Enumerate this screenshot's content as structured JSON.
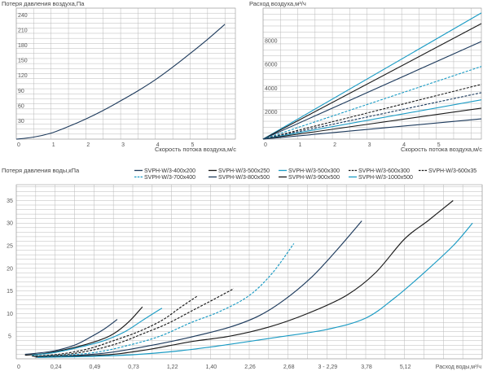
{
  "chart_data": [
    {
      "type": "line",
      "ylabel": "Потеря давления воздуха,Па",
      "xlabel": "Скорость потока воздуха,м/с",
      "xlim": [
        0,
        6.3
      ],
      "ylim": [
        0,
        260
      ],
      "xticks": [
        "0",
        "1",
        "2",
        "3",
        "4",
        "5"
      ],
      "yticks": [
        "30",
        "60",
        "90",
        "120",
        "150",
        "180",
        "210",
        "240"
      ],
      "grid": true,
      "series": [
        {
          "color": "#1d3a5c",
          "x": [
            0,
            0.5,
            1,
            1.5,
            2,
            2.5,
            3,
            3.5,
            4,
            4.5,
            5,
            5.5,
            6
          ],
          "y": [
            0,
            4,
            12,
            25,
            40,
            57,
            76,
            96,
            118,
            143,
            170,
            198,
            228
          ]
        }
      ]
    },
    {
      "type": "line",
      "ylabel": "Расход воздуха,м³/ч",
      "xlabel": "Скорость потока воздуха,м/с",
      "xlim": [
        0,
        6.3
      ],
      "ylim": [
        0,
        11000
      ],
      "xticks": [
        "0",
        "1",
        "2",
        "3",
        "4",
        "5"
      ],
      "yticks": [
        "2000",
        "4000",
        "6000",
        "8000"
      ],
      "grid": true,
      "series": [
        {
          "color": "#1a9bc4",
          "dash": false,
          "x": [
            0,
            6.3
          ],
          "y": [
            0,
            10600
          ]
        },
        {
          "color": "#1a1a1a",
          "dash": false,
          "x": [
            0,
            6.3
          ],
          "y": [
            0,
            9700
          ]
        },
        {
          "color": "#1d3a5c",
          "dash": false,
          "x": [
            0,
            6.3
          ],
          "y": [
            0,
            8200
          ]
        },
        {
          "color": "#1a9bc4",
          "dash": true,
          "x": [
            0,
            6.3
          ],
          "y": [
            0,
            6100
          ]
        },
        {
          "color": "#1a1a1a",
          "dash": true,
          "x": [
            0,
            6.3
          ],
          "y": [
            0,
            4600
          ]
        },
        {
          "color": "#1d3a5c",
          "dash": true,
          "x": [
            0,
            6.3
          ],
          "y": [
            0,
            3900
          ]
        },
        {
          "color": "#1a9bc4",
          "dash": false,
          "x": [
            0,
            6.3
          ],
          "y": [
            0,
            3300
          ]
        },
        {
          "color": "#1a1a1a",
          "dash": false,
          "x": [
            0,
            6.3
          ],
          "y": [
            0,
            2600
          ]
        },
        {
          "color": "#1d3a5c",
          "dash": false,
          "x": [
            0,
            6.3
          ],
          "y": [
            0,
            1700
          ]
        }
      ]
    },
    {
      "type": "line",
      "ylabel": "Потеря давления воды,кПа",
      "xlabel": "Расход воды,м³/ч",
      "xticks": [
        "0",
        "0,24",
        "0,49",
        "0,73",
        "1,22",
        "1,40",
        "2,26",
        "2,68",
        "3 - 2,29",
        "3,78",
        "5,12"
      ],
      "yticks": [
        "5",
        "10",
        "15",
        "20",
        "25",
        "30",
        "35"
      ],
      "ylim": [
        0,
        38.5
      ],
      "grid": true,
      "legend": "top",
      "series": [
        {
          "name": "SVPH-W/3-400x200",
          "color": "#1d3a5c",
          "dash": false,
          "points": [
            [
              0.45,
              1
            ],
            [
              1.0,
              1.2
            ],
            [
              2.0,
              1.8
            ],
            [
              3.0,
              3.0
            ],
            [
              3.7,
              4.5
            ],
            [
              4.5,
              6.5
            ],
            [
              5.2,
              8.7
            ]
          ]
        },
        {
          "name": "SVPH-W/3-500x250",
          "color": "#1a1a1a",
          "dash": false,
          "points": [
            [
              0.45,
              0.8
            ],
            [
              1.5,
              1.2
            ],
            [
              3.0,
              2.5
            ],
            [
              4.2,
              4.0
            ],
            [
              5.0,
              5.5
            ],
            [
              5.8,
              8.2
            ],
            [
              6.5,
              11.5
            ]
          ]
        },
        {
          "name": "SVPH-W/3-500x300",
          "color": "#1a9bc4",
          "dash": false,
          "points": [
            [
              0.8,
              0.8
            ],
            [
              2.0,
              1.4
            ],
            [
              3.2,
              2.5
            ],
            [
              4.5,
              4.0
            ],
            [
              5.6,
              6.0
            ],
            [
              6.5,
              8.5
            ],
            [
              7.5,
              11.2
            ]
          ]
        },
        {
          "name": "SVPH-W/3-600x300",
          "color": "#1a1a1a",
          "dash": true,
          "points": [
            [
              0.8,
              0.6
            ],
            [
              2.2,
              1.0
            ],
            [
              3.7,
              2.2
            ],
            [
              5.0,
              4.0
            ],
            [
              6.3,
              6.0
            ],
            [
              7.5,
              8.5
            ],
            [
              8.5,
              11.5
            ],
            [
              9.3,
              13.8
            ]
          ]
        },
        {
          "name": "SVPH-W/3-600x35",
          "color": "#1a1a1a",
          "dash": true,
          "points": [
            [
              0.9,
              0.5
            ],
            [
              2.5,
              0.9
            ],
            [
              4.0,
              2.0
            ],
            [
              5.3,
              3.5
            ],
            [
              6.5,
              5.5
            ],
            [
              7.8,
              7.8
            ],
            [
              9.0,
              10.5
            ],
            [
              10.2,
              13.2
            ],
            [
              11.2,
              15.5
            ]
          ]
        },
        {
          "name": "SVPH-W/3-700x400",
          "color": "#1a9bc4",
          "dash": true,
          "points": [
            [
              1.0,
              0.5
            ],
            [
              2.6,
              0.8
            ],
            [
              4.2,
              1.5
            ],
            [
              5.8,
              3.0
            ],
            [
              7.4,
              5.0
            ],
            [
              9.0,
              8.0
            ],
            [
              10.5,
              10.5
            ],
            [
              12.0,
              14.0
            ],
            [
              13.2,
              19.0
            ],
            [
              14.3,
              25.5
            ]
          ]
        },
        {
          "name": "SVPH-W/3-800x500",
          "color": "#1d3a5c",
          "dash": false,
          "points": [
            [
              1.0,
              0.4
            ],
            [
              3.0,
              0.7
            ],
            [
              5.0,
              1.5
            ],
            [
              7.0,
              3.0
            ],
            [
              9.0,
              4.8
            ],
            [
              11.0,
              7.0
            ],
            [
              12.5,
              9.5
            ],
            [
              13.8,
              13.0
            ],
            [
              15.2,
              18.0
            ],
            [
              16.5,
              24.0
            ],
            [
              17.8,
              30.5
            ]
          ]
        },
        {
          "name": "SVPH-W/3-900x500",
          "color": "#1a1a1a",
          "dash": false,
          "points": [
            [
              1.0,
              0.4
            ],
            [
              3.0,
              0.6
            ],
            [
              5.0,
              1.0
            ],
            [
              7.0,
              2.2
            ],
            [
              9.0,
              3.8
            ],
            [
              11.0,
              5.0
            ],
            [
              13.0,
              7.0
            ],
            [
              15.0,
              10.0
            ],
            [
              17.0,
              14.0
            ],
            [
              18.5,
              19.0
            ],
            [
              20.0,
              26.5
            ],
            [
              21.2,
              30.5
            ],
            [
              22.5,
              35.0
            ]
          ]
        },
        {
          "name": "SVPH-W/3-1000x500",
          "color": "#1a9bc4",
          "dash": false,
          "points": [
            [
              1.1,
              0.3
            ],
            [
              3.5,
              0.5
            ],
            [
              6.0,
              0.9
            ],
            [
              8.5,
              1.8
            ],
            [
              11.0,
              3.2
            ],
            [
              13.5,
              4.8
            ],
            [
              16.0,
              6.5
            ],
            [
              18.0,
              9.0
            ],
            [
              19.5,
              13.5
            ],
            [
              21.0,
              19.0
            ],
            [
              22.5,
              25.0
            ],
            [
              23.5,
              30.0
            ]
          ]
        }
      ]
    }
  ]
}
